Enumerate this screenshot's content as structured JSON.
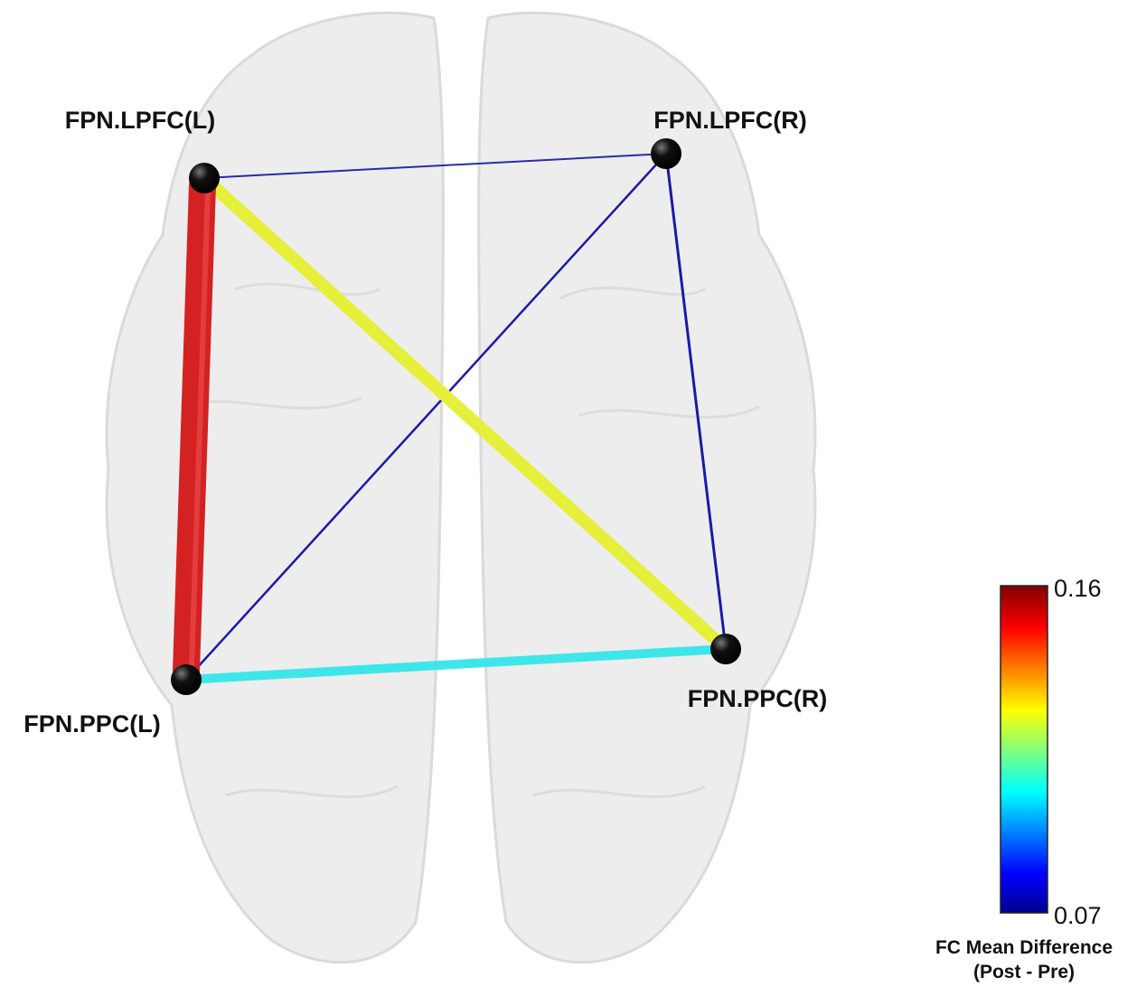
{
  "nodes": [
    {
      "label": "FPN.LPFC(L)"
    },
    {
      "label": "FPN.LPFC(R)"
    },
    {
      "label": "FPN.PPC(L)"
    },
    {
      "label": "FPN.PPC(R)"
    }
  ],
  "colorbar": {
    "max_label": "0.16",
    "min_label": "0.07",
    "title": "FC Mean Difference",
    "subtitle": "(Post - Pre)"
  }
}
